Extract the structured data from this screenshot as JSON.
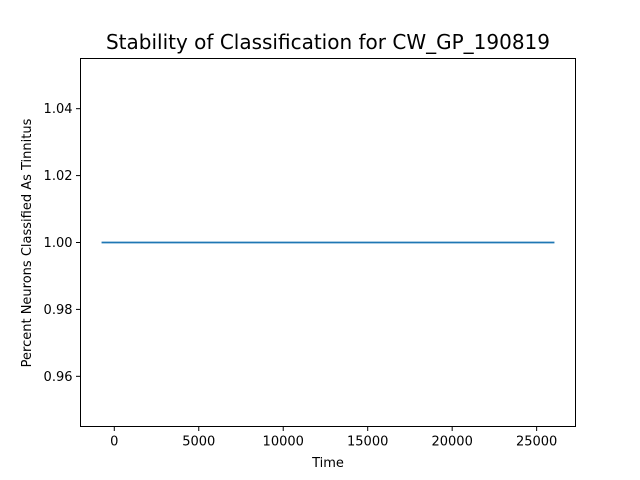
{
  "chart_data": {
    "type": "line",
    "title": "Stability of Classification for CW_GP_190819",
    "xlabel": "Time",
    "ylabel": "Percent Neurons Classified As Tinnitus",
    "xlim": [
      -2000,
      27300
    ],
    "ylim": [
      0.945,
      1.055
    ],
    "x_ticks": [
      0,
      5000,
      10000,
      15000,
      20000,
      25000
    ],
    "x_tick_labels": [
      "0",
      "5000",
      "10000",
      "15000",
      "20000",
      "25000"
    ],
    "y_ticks": [
      0.96,
      0.98,
      1.0,
      1.02,
      1.04
    ],
    "y_tick_labels": [
      "0.96",
      "0.98",
      "1.00",
      "1.02",
      "1.04"
    ],
    "grid": false,
    "series": [
      {
        "color": "#1f77b4",
        "x": [
          -700,
          26000
        ],
        "y": [
          1.0,
          1.0
        ]
      }
    ]
  }
}
